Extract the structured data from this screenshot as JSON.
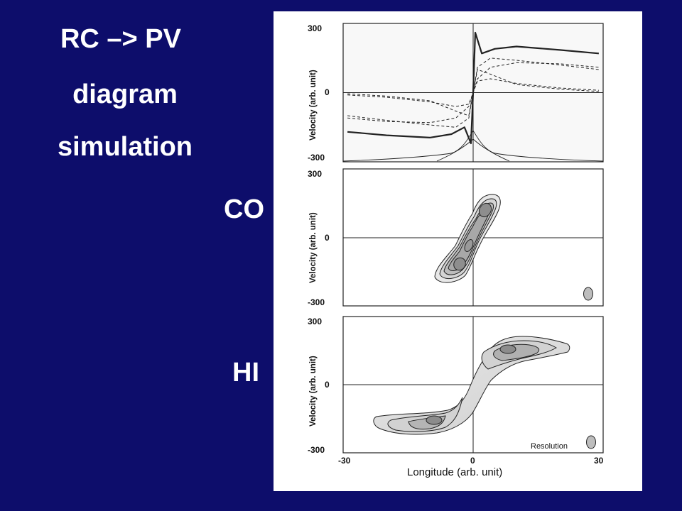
{
  "slide": {
    "title_lines": [
      "RC –> PV",
      "diagram",
      "simulation"
    ],
    "labels": {
      "co": "CO",
      "hi": "HI"
    }
  },
  "figure": {
    "ylabel": "Velocity (arb. unit)",
    "xlabel": "Longitude (arb. unit)",
    "x_ticks": [
      "-30",
      "0",
      "30"
    ],
    "y_ticks": [
      "300",
      "0",
      "-300"
    ],
    "resolution_label": "Resolution"
  },
  "chart_data": [
    {
      "type": "line",
      "panel": "rotation-curve",
      "xlim": [
        -30,
        30
      ],
      "ylim": [
        -300,
        300
      ],
      "series": [
        {
          "style": "solid",
          "x": [
            -29,
            -20,
            -10,
            -5,
            -2,
            -0.5,
            0,
            0.5,
            2,
            5,
            10,
            20,
            29
          ],
          "y": [
            -170,
            -185,
            -195,
            -180,
            -150,
            -220,
            0,
            260,
            170,
            190,
            200,
            185,
            170
          ]
        },
        {
          "style": "dashed",
          "x": [
            -29,
            -20,
            -10,
            -4,
            -1,
            0,
            1,
            4,
            10,
            20,
            29
          ],
          "y": [
            -100,
            -120,
            -140,
            -150,
            -110,
            0,
            110,
            150,
            140,
            120,
            100
          ]
        },
        {
          "style": "dashed",
          "x": [
            -29,
            -20,
            -10,
            -4,
            -1,
            0,
            1,
            4,
            10,
            20,
            29
          ],
          "y": [
            -110,
            -125,
            -130,
            -110,
            -60,
            0,
            60,
            110,
            130,
            125,
            110
          ]
        },
        {
          "style": "dashed",
          "x": [
            -29,
            -20,
            -10,
            -4,
            -1,
            0,
            1,
            4,
            10,
            20,
            29
          ],
          "y": [
            -10,
            -20,
            -40,
            -60,
            -50,
            0,
            50,
            60,
            40,
            20,
            10
          ]
        },
        {
          "style": "dashed",
          "x": [
            -29,
            -20,
            -10,
            -4,
            -1,
            0,
            1,
            4,
            10,
            20,
            29
          ],
          "y": [
            -5,
            -15,
            -35,
            -80,
            -100,
            0,
            100,
            80,
            35,
            15,
            5
          ]
        }
      ]
    },
    {
      "type": "contour",
      "panel": "CO",
      "xlim": [
        -30,
        30
      ],
      "ylim": [
        -300,
        300
      ]
    },
    {
      "type": "contour",
      "panel": "HI",
      "xlim": [
        -30,
        30
      ],
      "ylim": [
        -300,
        300
      ]
    }
  ]
}
